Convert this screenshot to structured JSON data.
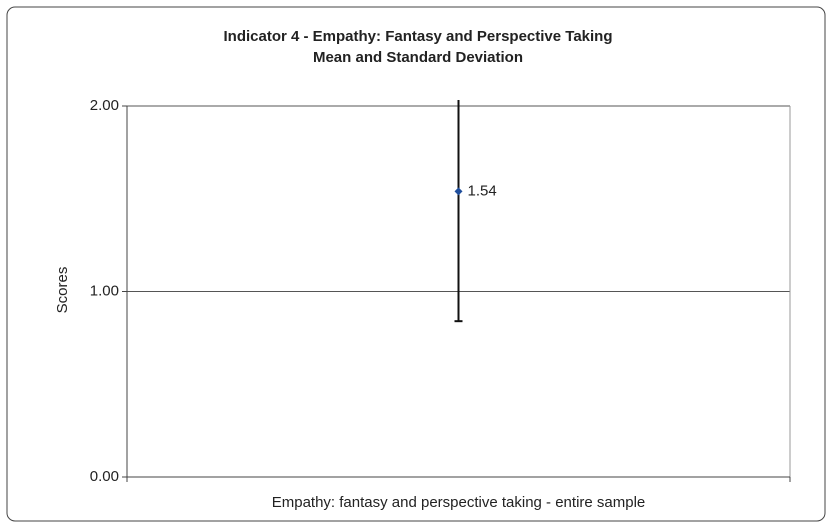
{
  "chart_data": {
    "type": "errorbar",
    "title": "Indicator 4 - Empathy: Fantasy and Perspective Taking",
    "subtitle": "Mean and Standard Deviation",
    "y_label": "Scores",
    "categories": [
      "Empathy: fantasy and perspective taking - entire sample"
    ],
    "values": [
      1.54
    ],
    "errors": [
      0.7
    ],
    "color": "#1f4e9c",
    "ylim": [
      0,
      2
    ],
    "yticks": [
      {
        "value": 0,
        "label": "0.00"
      },
      {
        "value": 1,
        "label": "1.00"
      },
      {
        "value": 2,
        "label": "2.00"
      }
    ],
    "grid": true
  }
}
